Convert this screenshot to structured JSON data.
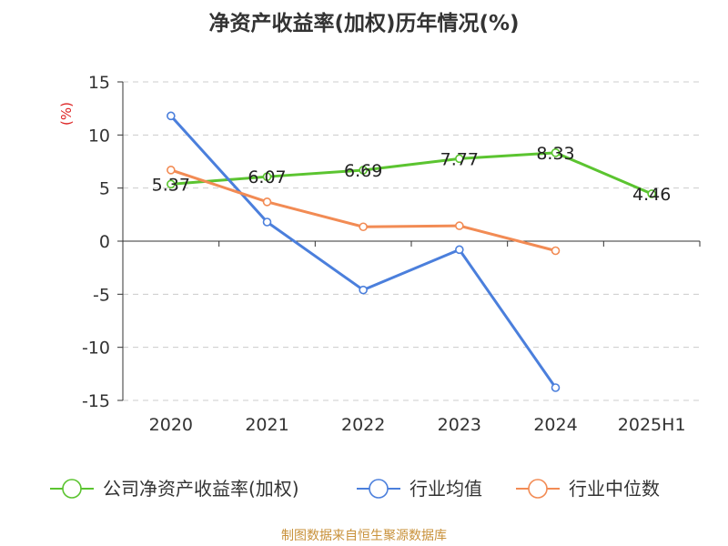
{
  "title": "净资产收益率(加权)历年情况(%)",
  "source": "制图数据来自恒生聚源数据库",
  "chart_data": {
    "type": "line",
    "title": "净资产收益率(加权)历年情况(%)",
    "ylabel": "(%)",
    "xlabel": "",
    "categories": [
      "2020",
      "2021",
      "2022",
      "2023",
      "2024",
      "2025H1"
    ],
    "ylim": [
      -15,
      15
    ],
    "yticks": [
      15,
      10,
      5,
      0,
      -5,
      -10,
      -15
    ],
    "grid": true,
    "legend_position": "bottom",
    "series": [
      {
        "name": "公司净资产收益率(加权)",
        "color": "#5bc430",
        "values": [
          5.37,
          6.07,
          6.69,
          7.77,
          8.33,
          4.46
        ],
        "labels": true
      },
      {
        "name": "行业均值",
        "color": "#4b7fdc",
        "values": [
          11.8,
          1.8,
          -4.6,
          -0.8,
          -13.8,
          null
        ],
        "labels": false
      },
      {
        "name": "行业中位数",
        "color": "#f28b54",
        "values": [
          6.7,
          3.7,
          1.35,
          1.45,
          -0.9,
          null
        ],
        "labels": false
      }
    ]
  }
}
